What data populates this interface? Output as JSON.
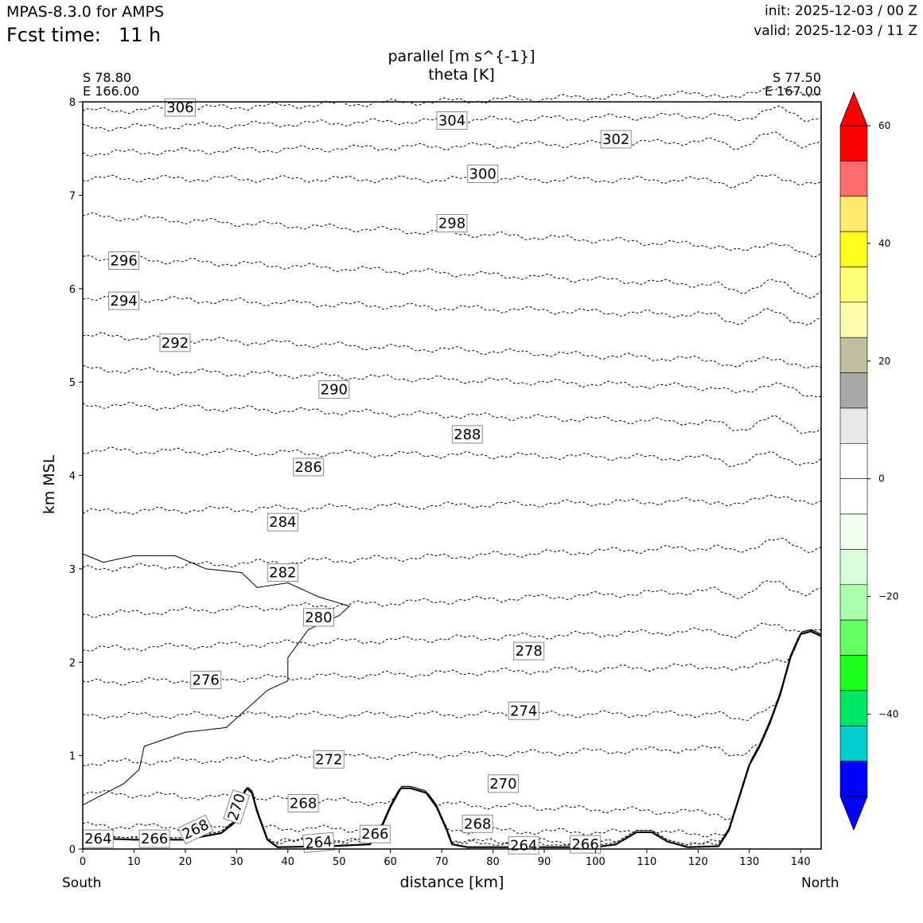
{
  "header": {
    "model": "MPAS-8.3.0 for AMPS",
    "fcst_label": "Fcst time:",
    "fcst_value": "11 h",
    "init": "init: 2025-12-03 / 00 Z",
    "valid": "valid: 2025-12-03 / 11 Z"
  },
  "chart_data": {
    "type": "cross-section contour",
    "title": "parallel [m s^{-1}]",
    "subtitle": "theta [K]",
    "xlabel": "distance [km]",
    "ylabel": "km MSL",
    "xlim": [
      0,
      144
    ],
    "ylim": [
      0,
      8
    ],
    "xticks": [
      0,
      10,
      20,
      30,
      40,
      50,
      60,
      70,
      80,
      90,
      100,
      110,
      120,
      130,
      140
    ],
    "yticks": [
      0,
      1,
      2,
      3,
      4,
      5,
      6,
      7,
      8
    ],
    "left_endpoint": {
      "lat": "S 78.80",
      "lon": "E 166.00",
      "end_label": "South"
    },
    "right_endpoint": {
      "lat": "S 77.50",
      "lon": "E 167.00",
      "end_label": "North"
    },
    "theta_contours": [
      {
        "level": 306,
        "y_start": 7.9,
        "y_end": 8.12,
        "label_x": 19,
        "label_y": 7.94
      },
      {
        "level": 304,
        "y_start": 7.72,
        "y_end": 7.88,
        "label_x": 72,
        "label_y": 7.8
      },
      {
        "level": 302,
        "y_start": 7.45,
        "y_end": 7.6,
        "label_x": 104,
        "label_y": 7.6
      },
      {
        "level": 300,
        "y_start": 7.18,
        "y_end": 7.16,
        "label_x": 78,
        "label_y": 7.23
      },
      {
        "level": 298,
        "y_start": 6.78,
        "y_end": 6.41,
        "label_x": 72,
        "label_y": 6.7
      },
      {
        "level": 296,
        "y_start": 6.34,
        "y_end": 5.99,
        "label_x": 8,
        "label_y": 6.3
      },
      {
        "level": 294,
        "y_start": 5.91,
        "y_end": 5.68,
        "label_x": 8,
        "label_y": 5.87
      },
      {
        "level": 292,
        "y_start": 5.5,
        "y_end": 5.19,
        "label_x": 18,
        "label_y": 5.42
      },
      {
        "level": 290,
        "y_start": 5.14,
        "y_end": 4.91,
        "label_x": 49,
        "label_y": 4.92
      },
      {
        "level": 288,
        "y_start": 4.76,
        "y_end": 4.53,
        "label_x": 75,
        "label_y": 4.44
      },
      {
        "level": 286,
        "y_start": 4.27,
        "y_end": 4.17,
        "label_x": 44,
        "label_y": 4.09
      },
      {
        "level": 284,
        "y_start": 3.61,
        "y_end": 3.75,
        "label_x": 39,
        "label_y": 3.5
      },
      {
        "level": 282,
        "y_start": 3.0,
        "y_end": 3.27,
        "label_x": 39,
        "label_y": 2.96
      },
      {
        "level": 280,
        "y_start": 2.51,
        "y_end": 2.81,
        "label_x": 46,
        "label_y": 2.48
      },
      {
        "level": 278,
        "y_start": 2.14,
        "y_end": 2.37,
        "label_x": 87,
        "label_y": 2.12
      },
      {
        "level": 276,
        "y_start": 1.78,
        "y_end": 1.99,
        "label_x": 24,
        "label_y": 1.81
      },
      {
        "level": 274,
        "y_start": 1.43,
        "y_end": 1.45,
        "label_x": 86,
        "label_y": 1.48
      },
      {
        "level": 272,
        "y_start": 0.92,
        "y_end": 1.1,
        "label_x": 48,
        "label_y": 0.96
      },
      {
        "level": 270,
        "y_start": 0.6,
        "y_end": 0.35,
        "label_x": 82,
        "label_y": 0.7
      },
      {
        "level": 268,
        "y_start": 0.25,
        "y_end": 0.15,
        "label_x": 43,
        "label_y": 0.49
      },
      {
        "level": 266,
        "y_start": 0.1,
        "y_end": 0.06,
        "label_x": 57,
        "label_y": 0.16
      },
      {
        "level": 264,
        "y_start": 0.1,
        "y_end": 0.03,
        "label_x": 3,
        "label_y": 0.11
      }
    ],
    "extra_contour_labels": [
      {
        "level": 270,
        "x": 30,
        "y": 0.45,
        "rotate": -72
      },
      {
        "level": 268,
        "x": 22,
        "y": 0.21,
        "rotate": -25
      },
      {
        "level": 268,
        "x": 77,
        "y": 0.27,
        "rotate": 0
      },
      {
        "level": 266,
        "x": 14,
        "y": 0.11,
        "rotate": 0
      },
      {
        "level": 266,
        "x": 98,
        "y": 0.05,
        "rotate": 0
      },
      {
        "level": 264,
        "x": 46,
        "y": 0.07,
        "rotate": -5
      },
      {
        "level": 264,
        "x": 86,
        "y": 0.04,
        "rotate": 0
      }
    ],
    "terrain": [
      [
        0,
        0.12
      ],
      [
        10,
        0.1
      ],
      [
        20,
        0.1
      ],
      [
        27,
        0.17
      ],
      [
        30,
        0.3
      ],
      [
        31,
        0.55
      ],
      [
        32,
        0.65
      ],
      [
        33,
        0.6
      ],
      [
        34,
        0.4
      ],
      [
        36,
        0.1
      ],
      [
        38,
        0.02
      ],
      [
        48,
        0.03
      ],
      [
        56,
        0.05
      ],
      [
        58,
        0.2
      ],
      [
        60,
        0.45
      ],
      [
        62,
        0.65
      ],
      [
        64,
        0.65
      ],
      [
        67,
        0.6
      ],
      [
        69,
        0.45
      ],
      [
        71,
        0.2
      ],
      [
        72,
        0.05
      ],
      [
        75,
        0.02
      ],
      [
        100,
        0.02
      ],
      [
        104,
        0.05
      ],
      [
        108,
        0.18
      ],
      [
        111,
        0.18
      ],
      [
        114,
        0.08
      ],
      [
        118,
        0.02
      ],
      [
        124,
        0.03
      ],
      [
        126,
        0.2
      ],
      [
        128,
        0.55
      ],
      [
        130,
        0.9
      ],
      [
        132,
        1.1
      ],
      [
        134,
        1.35
      ],
      [
        136,
        1.65
      ],
      [
        138,
        2.05
      ],
      [
        140,
        2.3
      ],
      [
        142,
        2.33
      ],
      [
        144,
        2.28
      ]
    ],
    "colorbar": {
      "ticks": [
        60,
        40,
        20,
        0,
        -20,
        -40
      ],
      "bounds": [
        60,
        54,
        48,
        42,
        36,
        30,
        24,
        18,
        12,
        6,
        0,
        -6,
        -12,
        -18,
        -24,
        -30,
        -36,
        -42,
        -48,
        -54
      ],
      "colors": [
        "#ff0000",
        "#ff6e6e",
        "#ffe96e",
        "#ffff1e",
        "#ffff78",
        "#ffffab",
        "#bebea0",
        "#a9a9a9",
        "#e8e8e8",
        "#ffffff",
        "#ffffff",
        "#f0fff0",
        "#d9fdd8",
        "#aaffaa",
        "#64ff64",
        "#1eff1e",
        "#00e664",
        "#00cdcd",
        "#0000ff"
      ],
      "over_color": "#ff0000",
      "under_color": "#0000ff"
    }
  }
}
